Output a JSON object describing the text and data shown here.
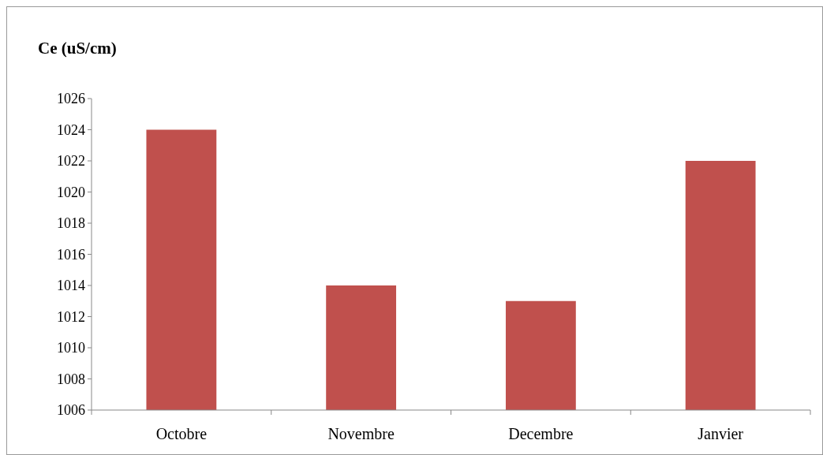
{
  "chart_data": {
    "type": "bar",
    "ylabel": "Ce (uS/cm)",
    "categories": [
      "Octobre",
      "Novembre",
      "Decembre",
      "Janvier"
    ],
    "values": [
      1024,
      1014,
      1013,
      1022
    ],
    "color": "#c0504d",
    "ylim": [
      1006,
      1026
    ],
    "yticks": [
      1006,
      1008,
      1010,
      1012,
      1014,
      1016,
      1018,
      1020,
      1022,
      1024,
      1026
    ],
    "grid": false
  }
}
